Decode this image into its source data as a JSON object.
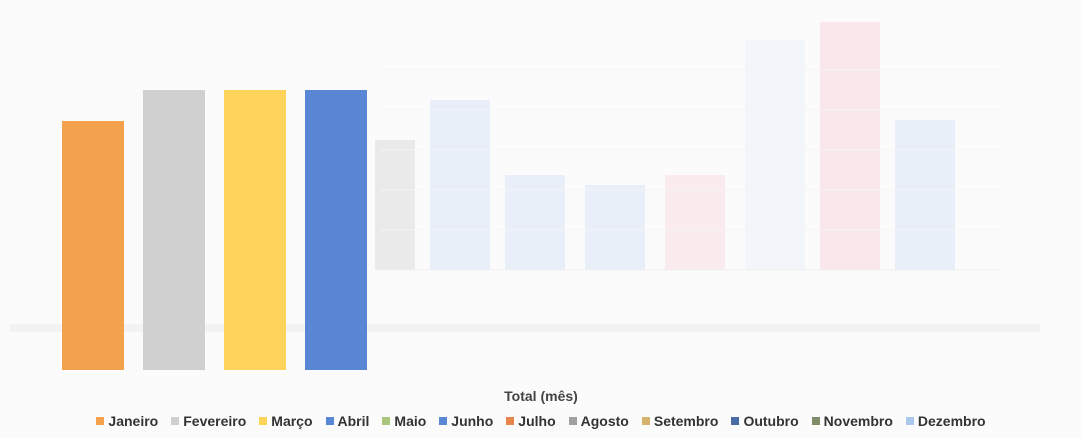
{
  "chart_data": {
    "type": "bar",
    "title": "",
    "xlabel": "Total (mês)",
    "ylabel": "",
    "legend_position": "bottom",
    "grid": false,
    "categories": [
      "Janeiro",
      "Fevereiro",
      "Março",
      "Abril",
      "Maio",
      "Junho",
      "Julho",
      "Agosto",
      "Setembro",
      "Outubro",
      "Novembro",
      "Dezembro"
    ],
    "visible_values": [
      0.89,
      1.0,
      1.0,
      1.0
    ],
    "value_note": "relative heights, Abril = 1.0",
    "colors": [
      "#f4a14d",
      "#d0d0d0",
      "#fdd35a",
      "#5a86d6",
      "#a8c47d",
      "#5a86d6",
      "#e8844a",
      "#a0a0a0",
      "#d4b46a",
      "#4a6aa6",
      "#7e8e6a",
      "#aac8ee"
    ]
  }
}
